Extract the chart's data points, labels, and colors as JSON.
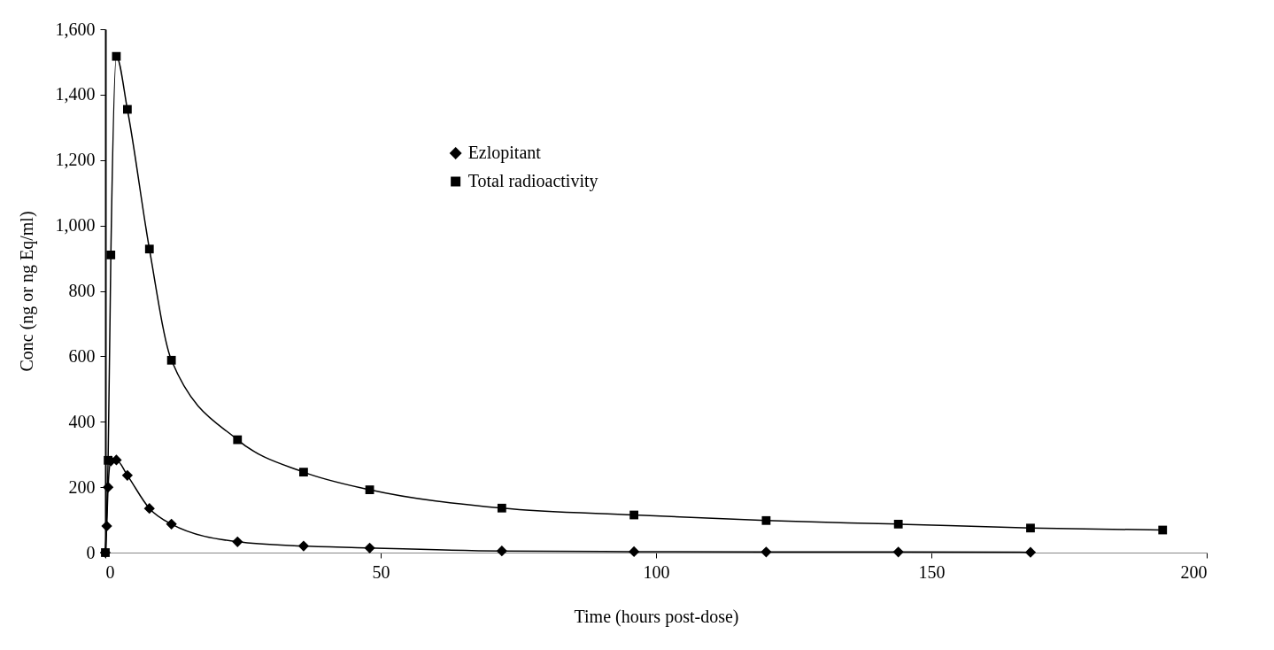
{
  "chart_data": {
    "type": "line",
    "xlabel": "Time (hours post-dose)",
    "ylabel": "Conc (ng or ng Eq/ml)",
    "xlim": [
      0,
      200
    ],
    "xticks": [
      0,
      50,
      100,
      150,
      200
    ],
    "ylim": [
      0,
      1600
    ],
    "yticks": [
      0,
      200,
      400,
      600,
      800,
      {
        "value": 1000,
        "label": "1,000"
      },
      {
        "value": 1200,
        "label": "1,200"
      },
      {
        "value": 1400,
        "label": "1,400"
      },
      {
        "value": 1600,
        "label": "1,600"
      }
    ],
    "grid": false,
    "legend": "top",
    "line_style": "solid",
    "series": [
      {
        "name": "Ezlopitant",
        "color": "#000000",
        "marker": "diamond",
        "x": [
          0,
          0.25,
          0.5,
          1,
          2,
          4,
          8,
          12,
          24,
          36,
          48,
          72,
          96,
          120,
          144,
          168
        ],
        "values": [
          0,
          81,
          200,
          280,
          283,
          236,
          135,
          87,
          33,
          20,
          14,
          5,
          3,
          2,
          2,
          1
        ]
      },
      {
        "name": "Total radioactivity",
        "color": "#000000",
        "marker": "square",
        "x": [
          0,
          0.5,
          1,
          2,
          4,
          8,
          12,
          24,
          36,
          48,
          72,
          96,
          120,
          144,
          168,
          192
        ],
        "values": [
          0,
          282,
          910,
          1517,
          1355,
          928,
          588,
          345,
          246,
          192,
          136,
          115,
          98,
          87,
          75,
          69
        ]
      }
    ]
  }
}
